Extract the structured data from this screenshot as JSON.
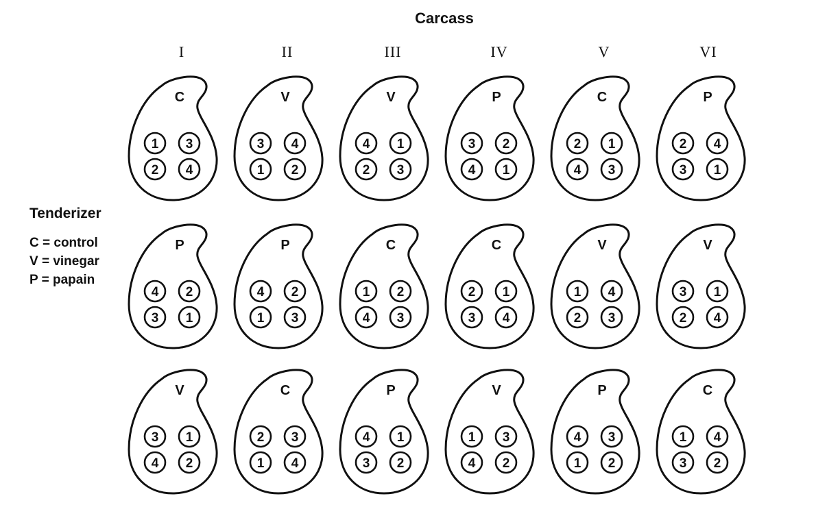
{
  "title": "Carcass",
  "carcasses": [
    "I",
    "II",
    "III",
    "IV",
    "V",
    "VI"
  ],
  "legend": {
    "title": "Tenderizer",
    "items": [
      "C = control",
      "V = vinegar",
      "P = papain"
    ]
  },
  "grid": [
    [
      {
        "treatment": "C",
        "positions": [
          1,
          3,
          2,
          4
        ]
      },
      {
        "treatment": "V",
        "positions": [
          3,
          4,
          1,
          2
        ]
      },
      {
        "treatment": "V",
        "positions": [
          4,
          1,
          2,
          3
        ]
      },
      {
        "treatment": "P",
        "positions": [
          3,
          2,
          4,
          1
        ]
      },
      {
        "treatment": "C",
        "positions": [
          2,
          1,
          4,
          3
        ]
      },
      {
        "treatment": "P",
        "positions": [
          2,
          4,
          3,
          1
        ]
      }
    ],
    [
      {
        "treatment": "P",
        "positions": [
          4,
          2,
          3,
          1
        ]
      },
      {
        "treatment": "P",
        "positions": [
          4,
          2,
          1,
          3
        ]
      },
      {
        "treatment": "C",
        "positions": [
          1,
          2,
          4,
          3
        ]
      },
      {
        "treatment": "C",
        "positions": [
          2,
          1,
          3,
          4
        ]
      },
      {
        "treatment": "V",
        "positions": [
          1,
          4,
          2,
          3
        ]
      },
      {
        "treatment": "V",
        "positions": [
          3,
          1,
          2,
          4
        ]
      }
    ],
    [
      {
        "treatment": "V",
        "positions": [
          3,
          1,
          4,
          2
        ]
      },
      {
        "treatment": "C",
        "positions": [
          2,
          3,
          1,
          4
        ]
      },
      {
        "treatment": "P",
        "positions": [
          4,
          1,
          3,
          2
        ]
      },
      {
        "treatment": "V",
        "positions": [
          1,
          3,
          4,
          2
        ]
      },
      {
        "treatment": "P",
        "positions": [
          4,
          3,
          1,
          2
        ]
      },
      {
        "treatment": "C",
        "positions": [
          1,
          4,
          3,
          2
        ]
      }
    ]
  ]
}
